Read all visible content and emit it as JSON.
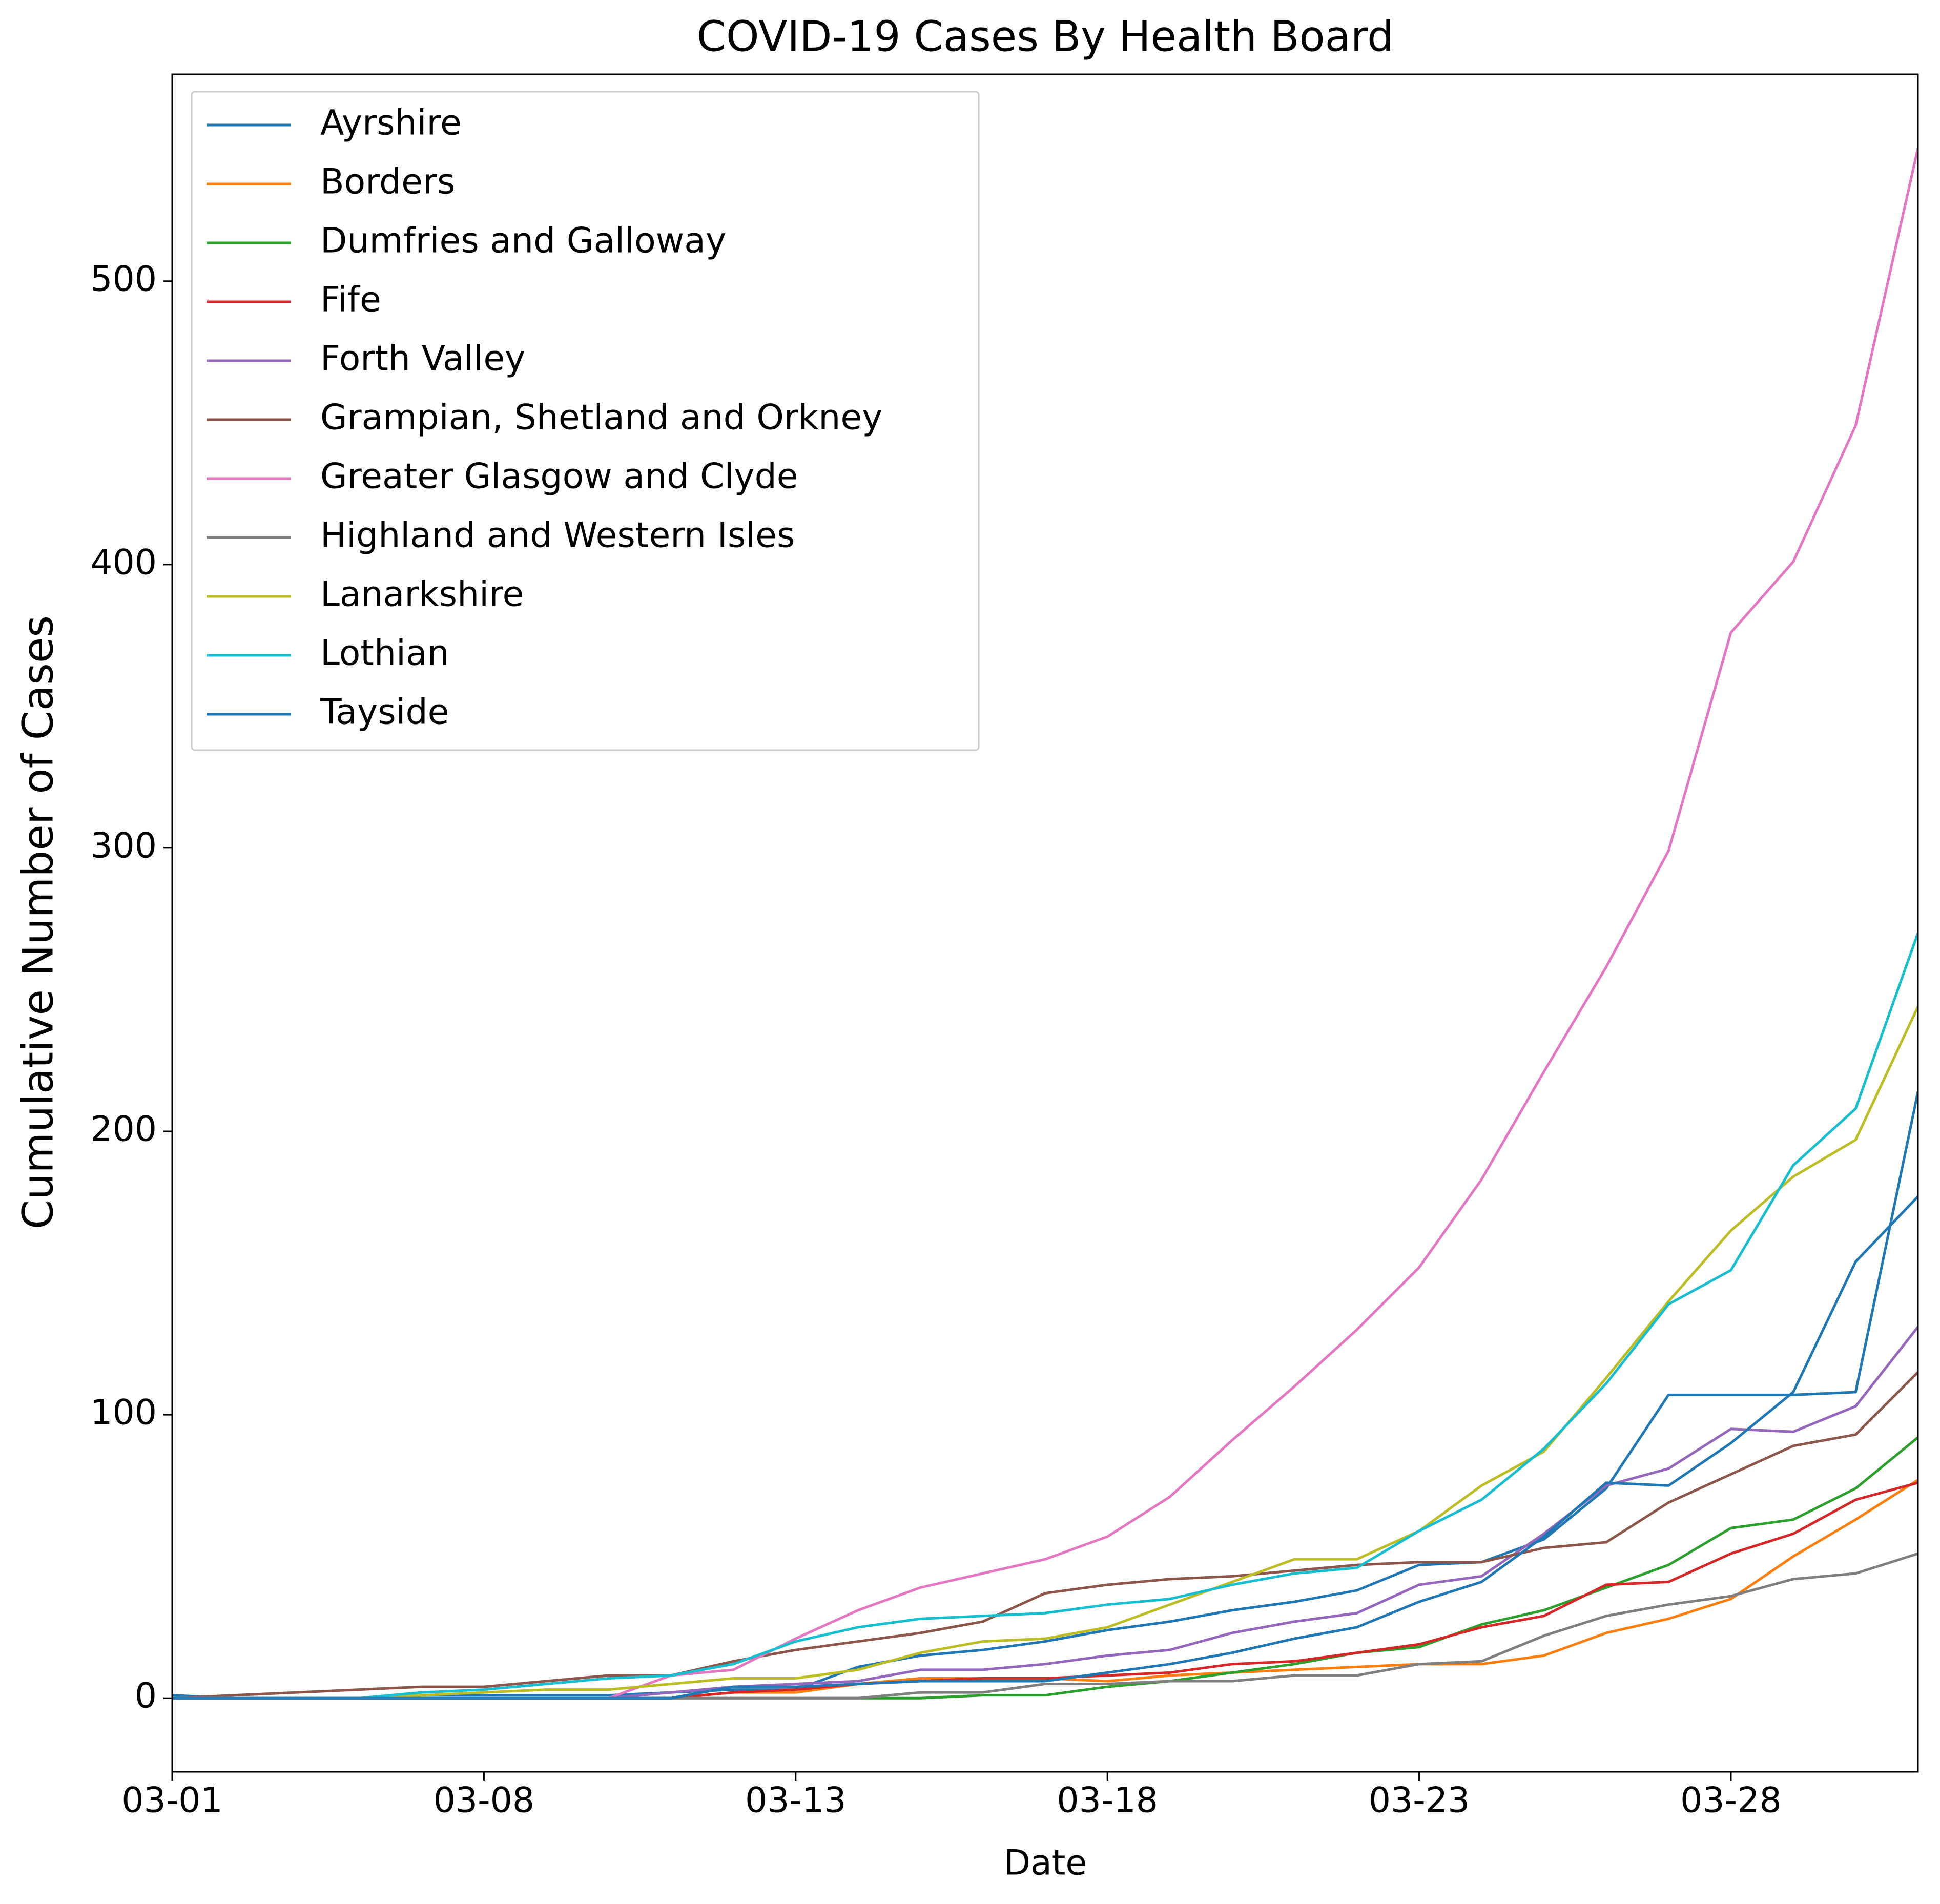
{
  "chart_data": {
    "type": "line",
    "title": "COVID-19 Cases By Health Board",
    "x_label": "Date",
    "y_label": "Cumulative Number of Cases",
    "categories": [
      "03-01",
      null,
      null,
      null,
      null,
      "03-08",
      null,
      null,
      null,
      null,
      "03-13",
      null,
      null,
      null,
      null,
      "03-18",
      null,
      null,
      null,
      null,
      "03-23",
      null,
      null,
      null,
      null,
      "03-28",
      null,
      null,
      null
    ],
    "ylim": [
      -26,
      573
    ],
    "yticks": [
      0,
      100,
      200,
      300,
      400,
      500
    ],
    "grid": false,
    "legend": "upper left",
    "series": [
      {
        "name": "Ayrshire",
        "color": "#1f77b4",
        "values": [
          1,
          0,
          0,
          0,
          1,
          1,
          1,
          1,
          2,
          3,
          3,
          11,
          15,
          17,
          20,
          24,
          27,
          31,
          34,
          38,
          47,
          48,
          56,
          74,
          107,
          107,
          107,
          108,
          214
        ]
      },
      {
        "name": "Borders",
        "color": "#ff7f0e",
        "values": [
          0,
          0,
          0,
          0,
          0,
          0,
          0,
          0,
          0,
          2,
          2,
          5,
          7,
          7,
          7,
          6,
          8,
          9,
          10,
          11,
          12,
          12,
          15,
          23,
          28,
          35,
          50,
          63,
          77
        ]
      },
      {
        "name": "Dumfries and Galloway",
        "color": "#2ca02c",
        "values": [
          0,
          0,
          0,
          0,
          0,
          0,
          0,
          0,
          0,
          0,
          0,
          0,
          0,
          1,
          1,
          4,
          6,
          9,
          12,
          16,
          18,
          26,
          31,
          39,
          47,
          60,
          63,
          74,
          92
        ]
      },
      {
        "name": "Fife",
        "color": "#d62728",
        "values": [
          0,
          0,
          0,
          0,
          0,
          0,
          0,
          0,
          0,
          2,
          3,
          5,
          6,
          7,
          7,
          8,
          9,
          12,
          13,
          16,
          19,
          25,
          29,
          40,
          41,
          51,
          58,
          70,
          76
        ]
      },
      {
        "name": "Forth Valley",
        "color": "#9467bd",
        "values": [
          0,
          0,
          0,
          0,
          0,
          0,
          0,
          0,
          2,
          4,
          5,
          6,
          10,
          10,
          12,
          15,
          17,
          23,
          27,
          30,
          40,
          43,
          58,
          75,
          81,
          95,
          94,
          103,
          131
        ]
      },
      {
        "name": "Grampian, Shetland and Orkney",
        "color": "#8c564b",
        "values": [
          0,
          1,
          2,
          3,
          4,
          4,
          6,
          8,
          8,
          13,
          17,
          20,
          23,
          27,
          37,
          40,
          42,
          43,
          45,
          47,
          48,
          48,
          53,
          55,
          69,
          79,
          89,
          93,
          115
        ]
      },
      {
        "name": "Greater Glasgow and Clyde",
        "color": "#e377c2",
        "values": [
          0,
          0,
          0,
          0,
          0,
          0,
          0,
          0,
          8,
          10,
          21,
          31,
          39,
          44,
          49,
          57,
          71,
          91,
          110,
          130,
          152,
          183,
          221,
          258,
          299,
          376,
          401,
          449,
          547
        ]
      },
      {
        "name": "Highland and Western Isles",
        "color": "#7f7f7f",
        "values": [
          0,
          0,
          0,
          0,
          0,
          0,
          0,
          0,
          0,
          0,
          0,
          0,
          2,
          2,
          5,
          5,
          6,
          6,
          8,
          8,
          12,
          13,
          22,
          29,
          33,
          36,
          42,
          44,
          51
        ]
      },
      {
        "name": "Lanarkshire",
        "color": "#bcbd22",
        "values": [
          0,
          0,
          0,
          0,
          1,
          2,
          3,
          3,
          5,
          7,
          7,
          10,
          16,
          20,
          21,
          25,
          33,
          41,
          49,
          49,
          59,
          75,
          87,
          113,
          140,
          165,
          184,
          197,
          244
        ]
      },
      {
        "name": "Lothian",
        "color": "#17becf",
        "values": [
          0,
          0,
          0,
          0,
          2,
          3,
          5,
          7,
          8,
          12,
          20,
          25,
          28,
          29,
          30,
          33,
          35,
          40,
          44,
          46,
          59,
          70,
          88,
          111,
          139,
          151,
          188,
          208,
          270
        ]
      },
      {
        "name": "Tayside",
        "color": "#1f77b4",
        "values": [
          0,
          0,
          0,
          0,
          0,
          0,
          0,
          0,
          0,
          4,
          4,
          5,
          6,
          6,
          6,
          9,
          12,
          16,
          21,
          25,
          34,
          41,
          57,
          76,
          75,
          90,
          108,
          154,
          177
        ]
      }
    ]
  }
}
